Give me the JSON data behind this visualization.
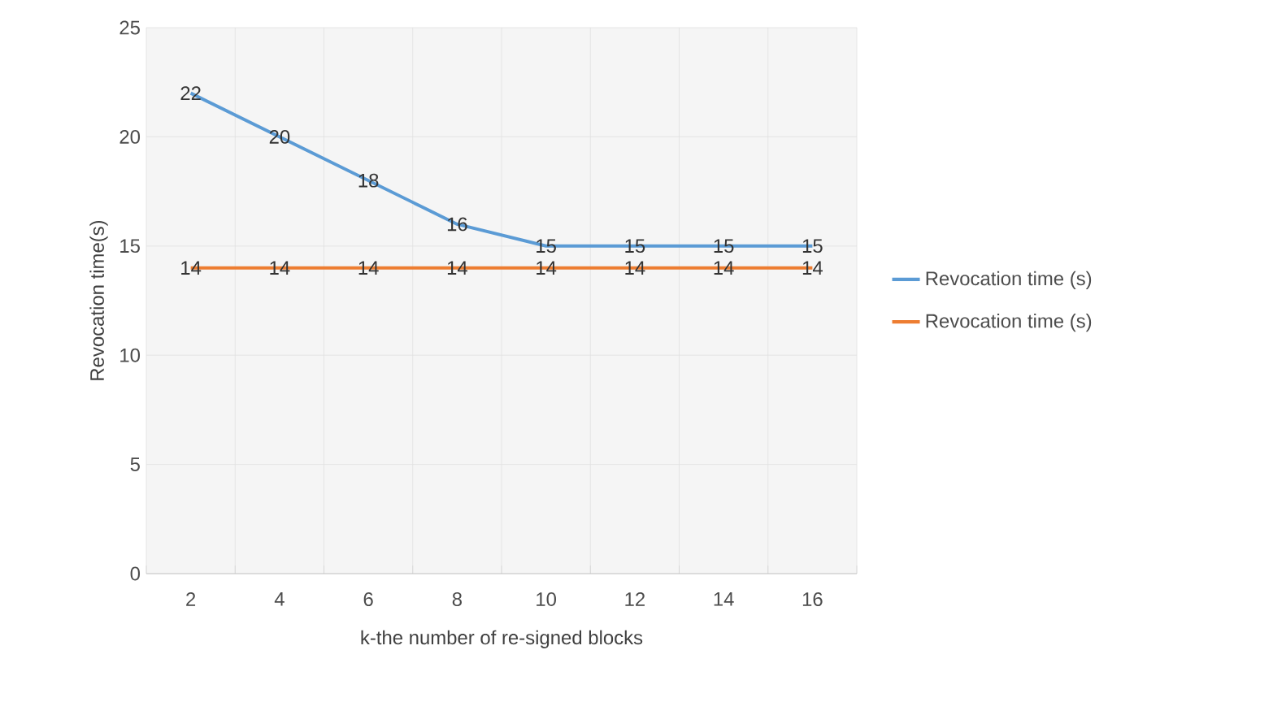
{
  "chart_data": {
    "type": "line",
    "xlabel": "k-the number of re-signed blocks",
    "ylabel": "Revocation time(s)",
    "categories": [
      "2",
      "4",
      "6",
      "8",
      "10",
      "12",
      "14",
      "16"
    ],
    "series": [
      {
        "name": "Revocation time (s)",
        "color": "#5b9bd5",
        "values": [
          22,
          20,
          18,
          16,
          15,
          15,
          15,
          15
        ]
      },
      {
        "name": "Revocation time (s)",
        "color": "#ed7d31",
        "values": [
          14,
          14,
          14,
          14,
          14,
          14,
          14,
          14
        ]
      }
    ],
    "ylim": [
      0,
      25
    ],
    "yticks": [
      0,
      5,
      10,
      15,
      20,
      25
    ],
    "grid": true,
    "legend": "right",
    "data_labels": true,
    "marker": "none",
    "line_style": "solid"
  }
}
